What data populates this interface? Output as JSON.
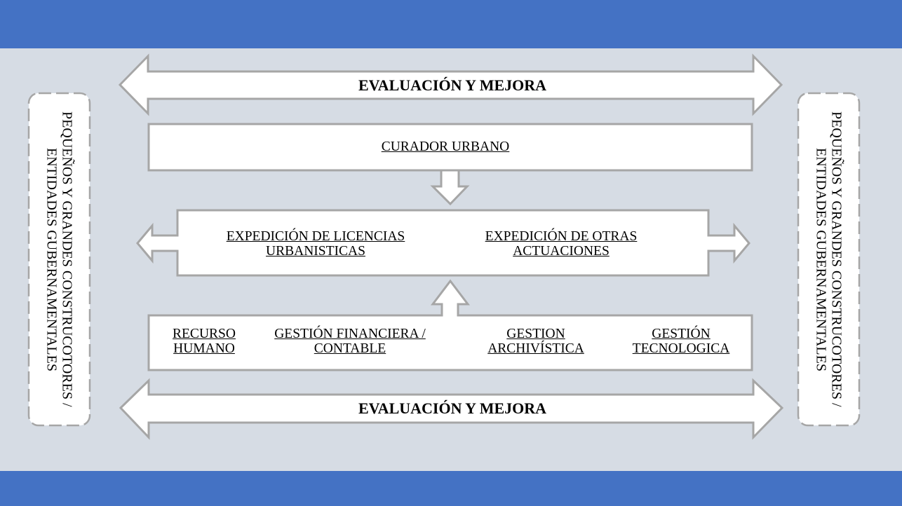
{
  "diagram": {
    "top_arrow_label": "EVALUACIÓN Y MEJORA",
    "bottom_arrow_label": "EVALUACIÓN Y MEJORA",
    "curador_label": "CURADOR URBANO",
    "process": {
      "licencias": "EXPEDICIÓN DE LICENCIAS URBANISTICAS",
      "otras": "EXPEDICIÓN DE OTRAS ACTUACIONES"
    },
    "support": {
      "recurso": "RECURSO HUMANO",
      "financiera": "GESTIÓN FINANCIERA / CONTABLE",
      "archivistica": "GESTION ARCHIVÍSTICA",
      "tecnologica": "GESTIÓN TECNOLOGICA"
    },
    "left_side_label": "PEQUEÑOS Y GRANDES CONSTRUCOTORES / ENTIDADES GUBERNAMENTALES",
    "right_side_label": "PEQUEÑOS Y GRANDES CONSTRUCOTORES / ENTIDADES GUBERNAMENTALES"
  },
  "colors": {
    "band": "#4472c4",
    "background": "#d6dce4",
    "shape_fill": "#ffffff",
    "shape_stroke": "#a6a6a6"
  }
}
